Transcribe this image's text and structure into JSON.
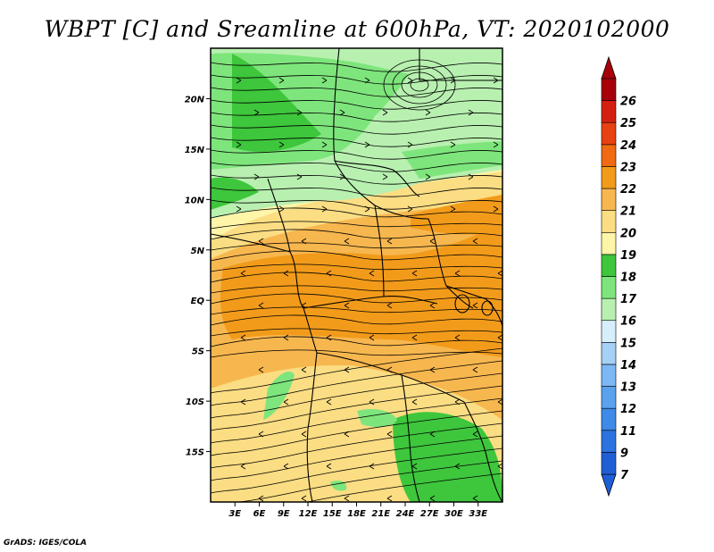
{
  "title": "WBPT [C] and Sreamline at 600hPa, VT: 2020102000",
  "credit": "GrADS: IGES/COLA",
  "map": {
    "lon_range": [
      0,
      36
    ],
    "lat_range": [
      -20,
      25
    ],
    "lat_ticks": [
      {
        "label": "20N",
        "lat": 20
      },
      {
        "label": "15N",
        "lat": 15
      },
      {
        "label": "10N",
        "lat": 10
      },
      {
        "label": "5N",
        "lat": 5
      },
      {
        "label": "EQ",
        "lat": 0
      },
      {
        "label": "5S",
        "lat": -5
      },
      {
        "label": "10S",
        "lat": -10
      },
      {
        "label": "15S",
        "lat": -15
      }
    ],
    "lon_ticks": [
      {
        "label": "3E",
        "lon": 3
      },
      {
        "label": "6E",
        "lon": 6
      },
      {
        "label": "9E",
        "lon": 9
      },
      {
        "label": "12E",
        "lon": 12
      },
      {
        "label": "15E",
        "lon": 15
      },
      {
        "label": "18E",
        "lon": 18
      },
      {
        "label": "21E",
        "lon": 21
      },
      {
        "label": "24E",
        "lon": 24
      },
      {
        "label": "27E",
        "lon": 27
      },
      {
        "label": "30E",
        "lon": 30
      },
      {
        "label": "33E",
        "lon": 33
      }
    ]
  },
  "colorbar": {
    "levels": [
      {
        "label": "7",
        "color": "#1f5fd6"
      },
      {
        "label": "9",
        "color": "#2b74e0"
      },
      {
        "label": "11",
        "color": "#3d8ae8"
      },
      {
        "label": "12",
        "color": "#5aa2ee"
      },
      {
        "label": "13",
        "color": "#7cb8f3"
      },
      {
        "label": "14",
        "color": "#a6d0f6"
      },
      {
        "label": "15",
        "color": "#d7eefc"
      },
      {
        "label": "16",
        "color": "#b8f0b0"
      },
      {
        "label": "17",
        "color": "#7ee57c"
      },
      {
        "label": "18",
        "color": "#3ec63c"
      },
      {
        "label": "19",
        "color": "#fff5a8"
      },
      {
        "label": "20",
        "color": "#fbdd83"
      },
      {
        "label": "21",
        "color": "#f7b74f"
      },
      {
        "label": "22",
        "color": "#f29b1a"
      },
      {
        "label": "23",
        "color": "#ef6a12"
      },
      {
        "label": "24",
        "color": "#e84212"
      },
      {
        "label": "25",
        "color": "#d42010"
      },
      {
        "label": "26",
        "color": "#a8000a"
      }
    ],
    "low_color": "#1f5fd6",
    "high_color": "#a8000a"
  }
}
